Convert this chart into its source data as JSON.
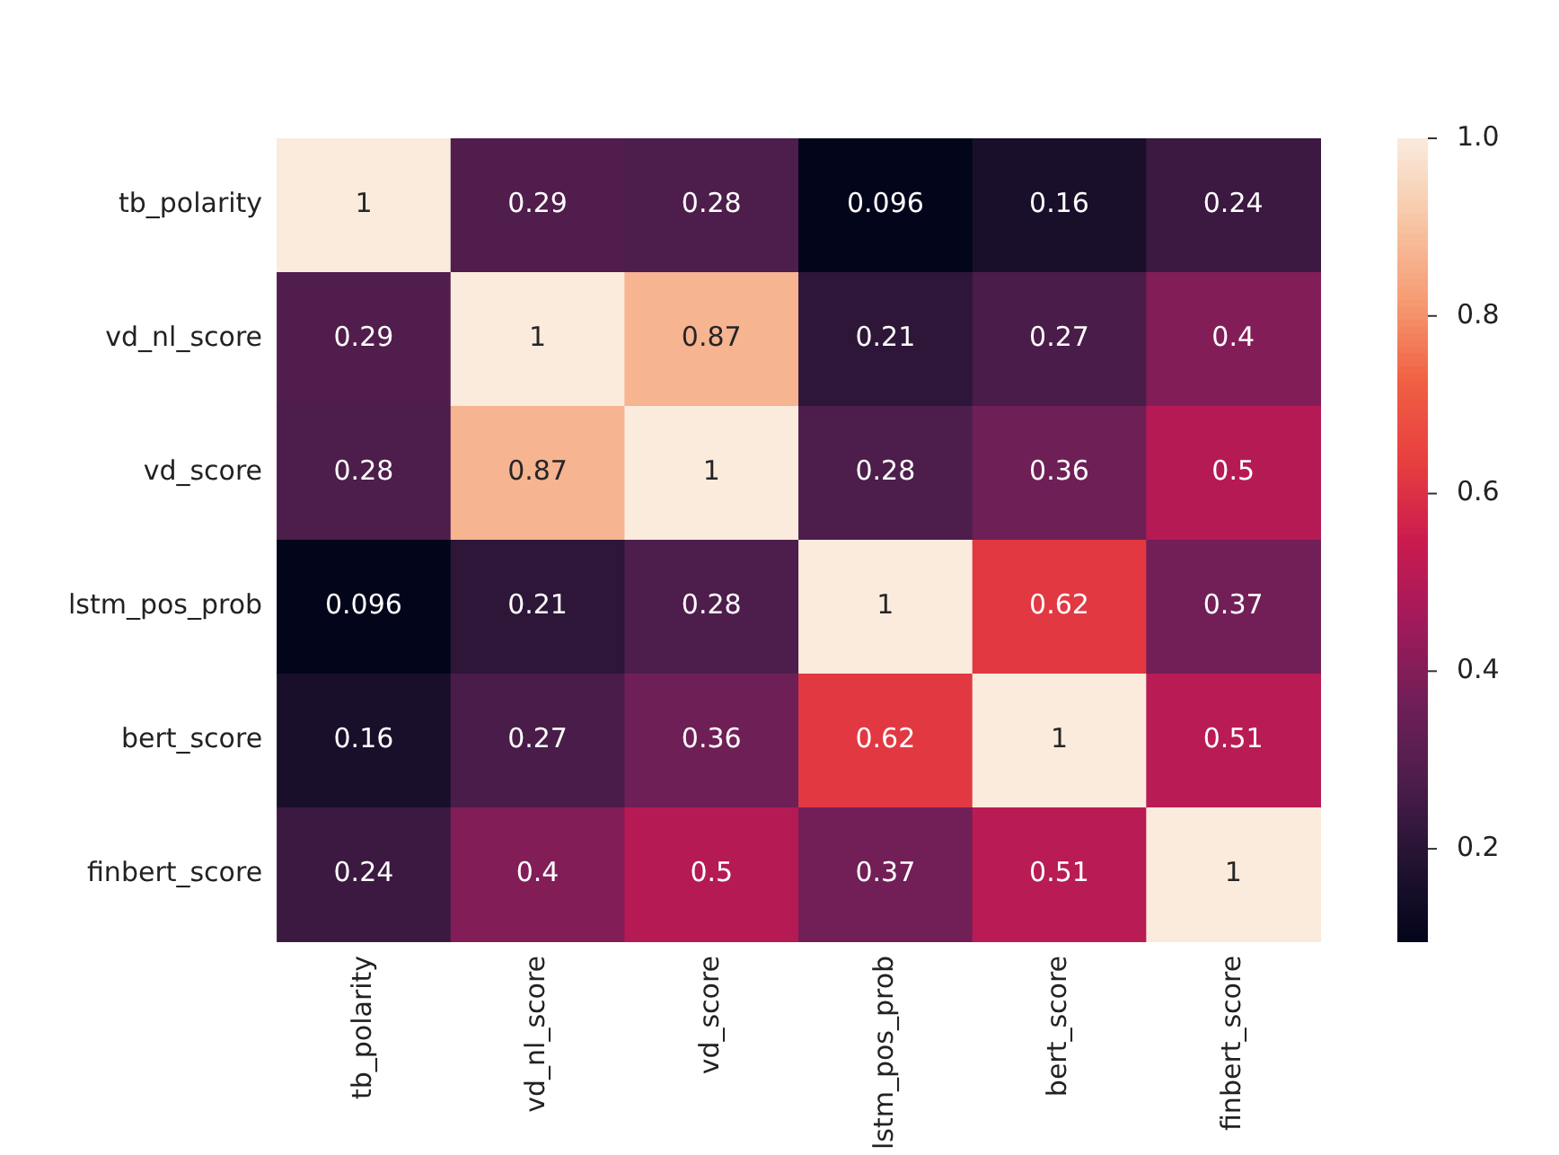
{
  "chart_data": {
    "type": "heatmap",
    "categories": [
      "tb_polarity",
      "vd_nl_score",
      "vd_score",
      "lstm_pos_prob",
      "bert_score",
      "finbert_score"
    ],
    "y_categories": [
      "tb_polarity",
      "vd_nl_score",
      "vd_score",
      "lstm_pos_prob",
      "bert_score",
      "finbert_score"
    ],
    "cells": [
      [
        1,
        0.29,
        0.28,
        0.096,
        0.16,
        0.24
      ],
      [
        0.29,
        1,
        0.87,
        0.21,
        0.27,
        0.4
      ],
      [
        0.28,
        0.87,
        1,
        0.28,
        0.36,
        0.5
      ],
      [
        0.096,
        0.21,
        0.28,
        1,
        0.62,
        0.37
      ],
      [
        0.16,
        0.27,
        0.36,
        0.62,
        1,
        0.51
      ],
      [
        0.24,
        0.4,
        0.5,
        0.37,
        0.51,
        1
      ]
    ],
    "data_labels": true,
    "clim": [
      0.096,
      1.0
    ],
    "cticks": [
      0.2,
      0.4,
      0.6,
      0.8,
      {
        "value": 1.0,
        "label": "1.0"
      }
    ]
  }
}
